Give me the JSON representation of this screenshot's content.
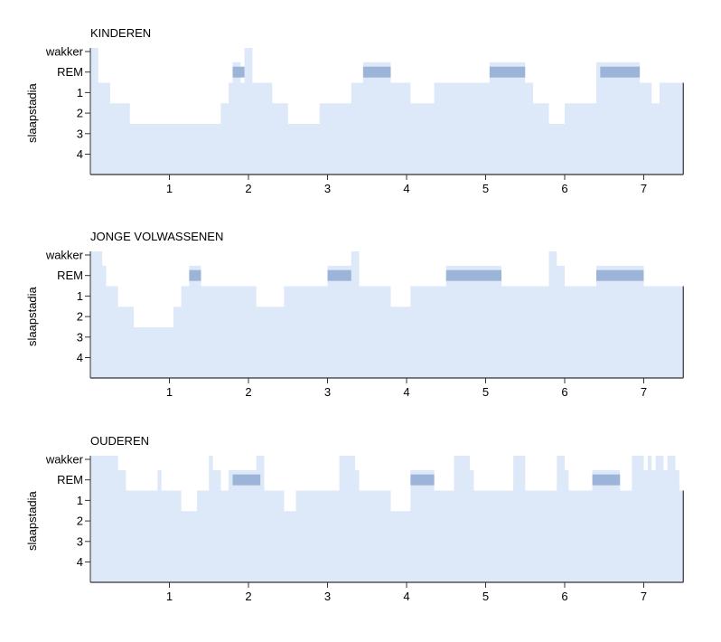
{
  "chart_data": [
    {
      "type": "area",
      "title": "KINDEREN",
      "ylabel": "slaapstadia",
      "y_categories": [
        "wakker",
        "REM",
        "1",
        "2",
        "3",
        "4"
      ],
      "x_ticks": [
        "1",
        "2",
        "3",
        "4",
        "5",
        "6",
        "7"
      ],
      "xlim": [
        0,
        7.5
      ],
      "steps": [
        [
          0,
          0
        ],
        [
          0.1,
          2
        ],
        [
          0.25,
          3
        ],
        [
          0.5,
          4
        ],
        [
          1.65,
          3
        ],
        [
          1.75,
          2
        ],
        [
          1.8,
          1
        ],
        [
          1.9,
          2
        ],
        [
          1.95,
          0
        ],
        [
          2.05,
          2
        ],
        [
          2.3,
          3
        ],
        [
          2.5,
          4
        ],
        [
          2.9,
          3
        ],
        [
          3.3,
          2
        ],
        [
          3.45,
          1
        ],
        [
          3.8,
          2
        ],
        [
          4.05,
          3
        ],
        [
          4.35,
          2
        ],
        [
          5.05,
          1
        ],
        [
          5.5,
          2
        ],
        [
          5.6,
          3
        ],
        [
          5.8,
          4
        ],
        [
          6.0,
          3
        ],
        [
          6.4,
          1
        ],
        [
          6.95,
          2
        ],
        [
          7.1,
          3
        ],
        [
          7.2,
          2
        ],
        [
          7.5,
          2
        ]
      ],
      "rem_periods": [
        [
          1.8,
          1.95
        ],
        [
          3.45,
          3.8
        ],
        [
          5.05,
          5.5
        ],
        [
          6.45,
          6.95
        ]
      ]
    },
    {
      "type": "area",
      "title": "JONGE VOLWASSENEN",
      "ylabel": "slaapstadia",
      "y_categories": [
        "wakker",
        "REM",
        "1",
        "2",
        "3",
        "4"
      ],
      "x_ticks": [
        "1",
        "2",
        "3",
        "4",
        "5",
        "6",
        "7"
      ],
      "xlim": [
        0,
        7.5
      ],
      "steps": [
        [
          0,
          0
        ],
        [
          0.15,
          1
        ],
        [
          0.2,
          2
        ],
        [
          0.35,
          3
        ],
        [
          0.55,
          4
        ],
        [
          1.05,
          3
        ],
        [
          1.15,
          2
        ],
        [
          1.25,
          1
        ],
        [
          1.4,
          2
        ],
        [
          2.1,
          3
        ],
        [
          2.45,
          2
        ],
        [
          3.0,
          1
        ],
        [
          3.3,
          0
        ],
        [
          3.4,
          2
        ],
        [
          3.8,
          3
        ],
        [
          4.05,
          2
        ],
        [
          4.5,
          1
        ],
        [
          5.2,
          2
        ],
        [
          5.8,
          0
        ],
        [
          5.9,
          1
        ],
        [
          6.0,
          2
        ],
        [
          6.4,
          1
        ],
        [
          7.0,
          2
        ],
        [
          7.5,
          2
        ]
      ],
      "rem_periods": [
        [
          1.25,
          1.4
        ],
        [
          3.0,
          3.3
        ],
        [
          4.5,
          5.2
        ],
        [
          6.4,
          7.0
        ]
      ]
    },
    {
      "type": "area",
      "title": "OUDEREN",
      "ylabel": "slaapstadia",
      "y_categories": [
        "wakker",
        "REM",
        "1",
        "2",
        "3",
        "4"
      ],
      "x_ticks": [
        "1",
        "2",
        "3",
        "4",
        "5",
        "6",
        "7"
      ],
      "xlim": [
        0,
        7.5
      ],
      "steps": [
        [
          0,
          0
        ],
        [
          0.35,
          1
        ],
        [
          0.45,
          2
        ],
        [
          0.85,
          1
        ],
        [
          0.9,
          2
        ],
        [
          1.15,
          3
        ],
        [
          1.35,
          2
        ],
        [
          1.5,
          0
        ],
        [
          1.55,
          1
        ],
        [
          1.65,
          2
        ],
        [
          1.75,
          1
        ],
        [
          2.1,
          0
        ],
        [
          2.2,
          2
        ],
        [
          2.45,
          3
        ],
        [
          2.6,
          2
        ],
        [
          3.15,
          0
        ],
        [
          3.35,
          1
        ],
        [
          3.4,
          2
        ],
        [
          3.8,
          3
        ],
        [
          4.05,
          1
        ],
        [
          4.35,
          2
        ],
        [
          4.6,
          0
        ],
        [
          4.8,
          1
        ],
        [
          4.85,
          2
        ],
        [
          5.35,
          0
        ],
        [
          5.5,
          2
        ],
        [
          5.9,
          0
        ],
        [
          6.0,
          1
        ],
        [
          6.05,
          2
        ],
        [
          6.35,
          1
        ],
        [
          6.7,
          2
        ],
        [
          6.85,
          0
        ],
        [
          7.0,
          1
        ],
        [
          7.05,
          0
        ],
        [
          7.1,
          1
        ],
        [
          7.15,
          0
        ],
        [
          7.25,
          1
        ],
        [
          7.3,
          0
        ],
        [
          7.4,
          1
        ],
        [
          7.45,
          2
        ],
        [
          7.5,
          2
        ]
      ],
      "rem_periods": [
        [
          1.8,
          2.15
        ],
        [
          4.05,
          4.35
        ],
        [
          6.35,
          6.7
        ]
      ]
    }
  ]
}
